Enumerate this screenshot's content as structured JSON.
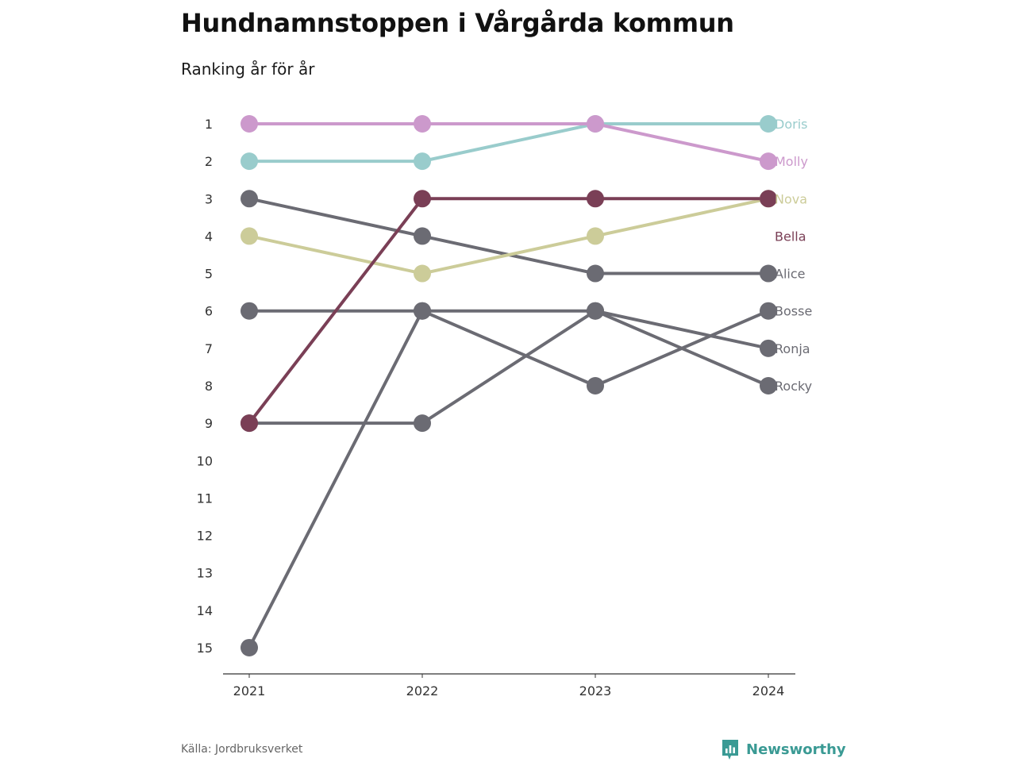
{
  "header": {
    "title": "Hundnamnstoppen i Vårgårda kommun",
    "subtitle": "Ranking år för år"
  },
  "footer": {
    "source": "Källa: Jordbruksverket",
    "brand": "Newsworthy",
    "brand_icon": "bar-chart-speech-bubble-icon",
    "brand_color": "#3a9a94"
  },
  "chart_data": {
    "type": "line",
    "title": "Hundnamnstoppen i Vårgårda kommun",
    "subtitle": "Ranking år för år",
    "x": [
      "2021",
      "2022",
      "2023",
      "2024"
    ],
    "y_ticks": [
      "1",
      "2",
      "3",
      "4",
      "5",
      "6",
      "7",
      "8",
      "9",
      "10",
      "11",
      "12",
      "13",
      "14",
      "15"
    ],
    "ylim": [
      1,
      15
    ],
    "y_inverted": true,
    "grid": false,
    "legend": "direct-labels-right",
    "series": [
      {
        "name": "Doris",
        "color": "#99cccc",
        "values": [
          2,
          2,
          1,
          1
        ]
      },
      {
        "name": "Molly",
        "color": "#cc99cc",
        "values": [
          1,
          1,
          1,
          2
        ]
      },
      {
        "name": "Nova",
        "color": "#cccc99",
        "values": [
          4,
          5,
          4,
          3
        ]
      },
      {
        "name": "Bella",
        "color": "#7a3f56",
        "values": [
          9,
          3,
          3,
          3
        ]
      },
      {
        "name": "Alice",
        "color": "#6b6b73",
        "values": [
          3,
          4,
          5,
          5
        ]
      },
      {
        "name": "Bosse",
        "color": "#6b6b73",
        "values": [
          6,
          6,
          8,
          6
        ]
      },
      {
        "name": "Ronja",
        "color": "#6b6b73",
        "values": [
          9,
          9,
          6,
          7
        ]
      },
      {
        "name": "Rocky",
        "color": "#6b6b73",
        "values": [
          15,
          6,
          6,
          8
        ]
      }
    ]
  }
}
